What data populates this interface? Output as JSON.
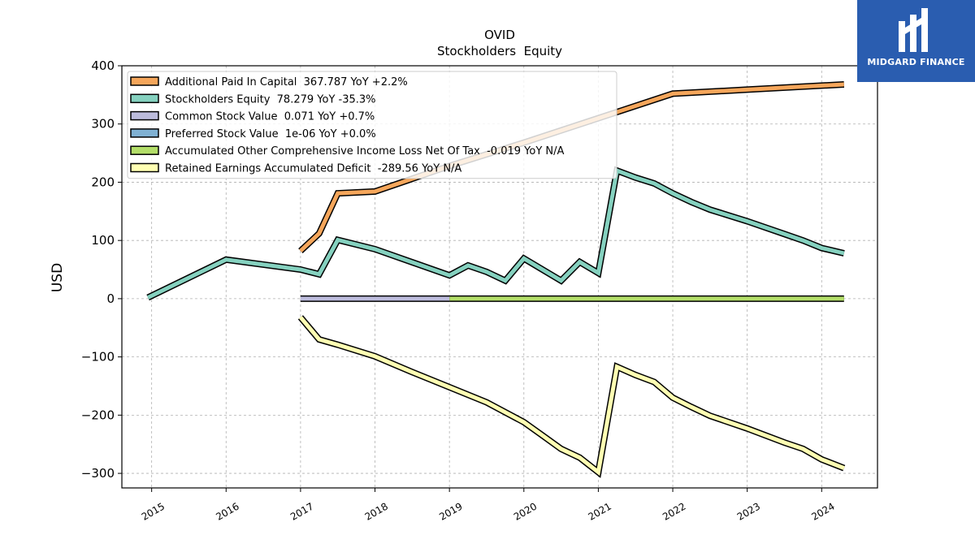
{
  "brand": {
    "name": "MIDGARD FINANCE",
    "icon": "midgard-logo-icon",
    "background": "#2a5db0"
  },
  "chart_data": {
    "type": "line",
    "title": "OVID",
    "subtitle": "Stockholders  Equity",
    "ylabel": "USD",
    "xlabel": "",
    "ylim": [
      -325,
      400
    ],
    "xlim": [
      2014.6,
      2024.75
    ],
    "yticks": [
      400,
      300,
      200,
      100,
      0,
      -100,
      -200,
      -300
    ],
    "ytick_labels": [
      "400",
      "300",
      "200",
      "100",
      "0",
      "−100",
      "−200",
      "−300"
    ],
    "xticks": [
      2015,
      2016,
      2017,
      2018,
      2019,
      2020,
      2021,
      2022,
      2023,
      2024
    ],
    "grid": true,
    "legend_position": "top-left",
    "series": [
      {
        "name": "Additional Paid In Capital",
        "legend": "Additional Paid In Capital  367.787 YoY +2.2%",
        "color": "#f5a65b",
        "points": [
          [
            2017.0,
            82
          ],
          [
            2017.25,
            112
          ],
          [
            2017.5,
            181
          ],
          [
            2018.0,
            184
          ],
          [
            2019.0,
            228
          ],
          [
            2020.0,
            268
          ],
          [
            2021.0,
            310
          ],
          [
            2022.0,
            352
          ],
          [
            2023.0,
            359
          ],
          [
            2024.3,
            368
          ]
        ]
      },
      {
        "name": "Stockholders Equity",
        "legend": "Stockholders Equity  78.279 YoY -35.3%",
        "color": "#85d1bf",
        "points": [
          [
            2014.95,
            2
          ],
          [
            2016.0,
            67
          ],
          [
            2017.0,
            50
          ],
          [
            2017.25,
            42
          ],
          [
            2017.5,
            101
          ],
          [
            2018.0,
            85
          ],
          [
            2019.0,
            40
          ],
          [
            2019.25,
            57
          ],
          [
            2019.5,
            46
          ],
          [
            2019.75,
            31
          ],
          [
            2020.0,
            69
          ],
          [
            2020.5,
            31
          ],
          [
            2020.75,
            63
          ],
          [
            2021.0,
            44
          ],
          [
            2021.25,
            220
          ],
          [
            2021.5,
            208
          ],
          [
            2021.75,
            198
          ],
          [
            2022.0,
            181
          ],
          [
            2022.25,
            166
          ],
          [
            2022.5,
            153
          ],
          [
            2023.0,
            133
          ],
          [
            2023.5,
            111
          ],
          [
            2023.75,
            100
          ],
          [
            2024.0,
            87
          ],
          [
            2024.3,
            78
          ]
        ]
      },
      {
        "name": "Common Stock Value",
        "legend": "Common Stock Value  0.071 YoY +0.7%",
        "color": "#bcbbdc",
        "points": [
          [
            2017.0,
            0
          ],
          [
            2019.0,
            0
          ]
        ]
      },
      {
        "name": "Preferred Stock Value",
        "legend": "Preferred Stock Value  1e-06 YoY +0.0%",
        "color": "#80b1d3",
        "points": []
      },
      {
        "name": "Accumulated Other Comprehensive Income Loss Net Of Tax",
        "legend": "Accumulated Other Comprehensive Income Loss Net Of Tax  -0.019 YoY N/A",
        "color": "#b3de69",
        "points": [
          [
            2019.0,
            0
          ],
          [
            2024.3,
            0
          ]
        ]
      },
      {
        "name": "Retained Earnings Accumulated Deficit",
        "legend": "Retained Earnings Accumulated Deficit  -289.56 YoY N/A",
        "color": "#ffffb3",
        "points": [
          [
            2017.0,
            -32
          ],
          [
            2017.25,
            -70
          ],
          [
            2017.5,
            -79
          ],
          [
            2018.0,
            -99
          ],
          [
            2018.5,
            -126
          ],
          [
            2019.0,
            -152
          ],
          [
            2019.5,
            -178
          ],
          [
            2020.0,
            -212
          ],
          [
            2020.25,
            -235
          ],
          [
            2020.5,
            -258
          ],
          [
            2020.75,
            -273
          ],
          [
            2021.0,
            -298
          ],
          [
            2021.25,
            -117
          ],
          [
            2021.5,
            -131
          ],
          [
            2021.75,
            -143
          ],
          [
            2022.0,
            -170
          ],
          [
            2022.25,
            -186
          ],
          [
            2022.5,
            -201
          ],
          [
            2023.0,
            -223
          ],
          [
            2023.5,
            -247
          ],
          [
            2023.75,
            -258
          ],
          [
            2024.0,
            -276
          ],
          [
            2024.3,
            -291
          ]
        ]
      }
    ]
  }
}
